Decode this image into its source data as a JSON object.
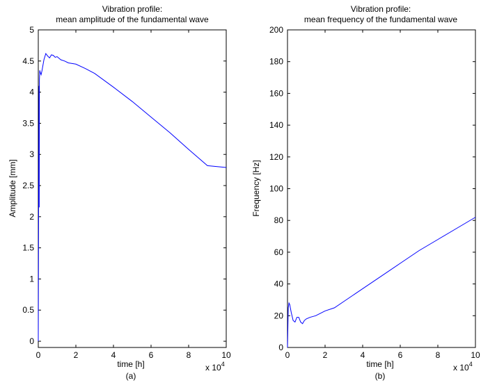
{
  "chart_data": [
    {
      "type": "line",
      "title": "Vibration profile:",
      "subtitle": "mean amplitude of the fundamental wave",
      "xlabel": "time [h]",
      "ylabel": "Amplitude [mm]",
      "caption": "(a)",
      "x_multiplier": "x 10",
      "x_multiplier_exp": "4",
      "xlim": [
        0,
        10
      ],
      "ylim": [
        -0.1,
        5
      ],
      "xticks": [
        0,
        2,
        4,
        6,
        8,
        10
      ],
      "yticks": [
        0,
        0.5,
        1,
        1.5,
        2,
        2.5,
        3,
        3.5,
        4,
        4.5,
        5
      ],
      "grid": false,
      "line_color": "#0000ff",
      "series": [
        {
          "x": [
            0,
            0.02,
            0.04,
            0.05,
            0.06,
            0.08,
            0.1,
            0.15,
            0.2,
            0.3,
            0.4,
            0.5,
            0.6,
            0.7,
            0.8,
            0.9,
            1.0,
            1.2,
            1.4,
            1.6,
            1.8,
            2.0,
            2.5,
            3.0,
            4.0,
            5.0,
            6.0,
            7.0,
            8.0,
            9.0,
            10.0
          ],
          "y": [
            0,
            2.4,
            4.1,
            2.15,
            4.2,
            4.35,
            4.32,
            4.28,
            4.35,
            4.52,
            4.62,
            4.58,
            4.55,
            4.6,
            4.59,
            4.56,
            4.57,
            4.52,
            4.5,
            4.47,
            4.46,
            4.45,
            4.38,
            4.3,
            4.08,
            3.85,
            3.6,
            3.35,
            3.08,
            2.82,
            2.79
          ]
        }
      ]
    },
    {
      "type": "line",
      "title": "Vibration profile:",
      "subtitle": "mean frequency of the fundamental wave",
      "xlabel": "time [h]",
      "ylabel": "Frequency [Hz]",
      "caption": "(b)",
      "x_multiplier": "x 10",
      "x_multiplier_exp": "4",
      "xlim": [
        0,
        10
      ],
      "ylim": [
        0,
        200
      ],
      "xticks": [
        0,
        2,
        4,
        6,
        8,
        10
      ],
      "yticks": [
        0,
        20,
        40,
        60,
        80,
        100,
        120,
        140,
        160,
        180,
        200
      ],
      "grid": false,
      "line_color": "#0000ff",
      "series": [
        {
          "x": [
            0,
            0.02,
            0.04,
            0.08,
            0.12,
            0.2,
            0.3,
            0.4,
            0.5,
            0.6,
            0.7,
            0.8,
            0.9,
            1.0,
            1.2,
            1.5,
            2.0,
            2.5,
            3.0,
            4.0,
            5.0,
            6.0,
            7.0,
            8.0,
            9.0,
            10.0
          ],
          "y": [
            0,
            12,
            25,
            28,
            27,
            22,
            17,
            16,
            19,
            19,
            16,
            15,
            17,
            18,
            19,
            20,
            23,
            25,
            29,
            37,
            45,
            53,
            61,
            68,
            75,
            82
          ]
        }
      ]
    }
  ]
}
